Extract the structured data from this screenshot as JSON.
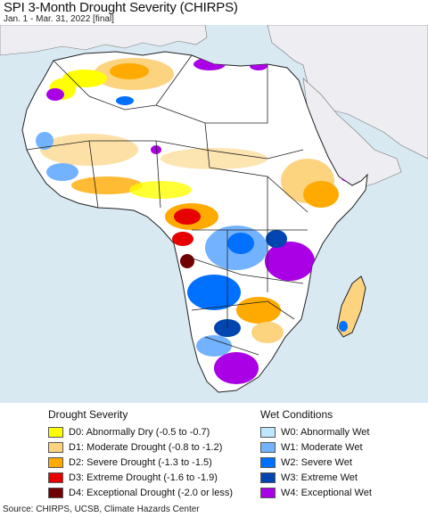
{
  "title": "SPI 3-Month Drought Severity (CHIRPS)",
  "subtitle": "Jan. 1 - Mar. 31, 2022 [final]",
  "colors": {
    "ocean": "#d8e9f2",
    "land_no_data_outside": "#eeeef2",
    "africa_base": "#ffffff",
    "border": "#222222"
  },
  "legend": {
    "drought": {
      "heading": "Drought Severity",
      "items": [
        {
          "label": "D0: Abnormally Dry (-0.5 to -0.7)",
          "color": "#ffff00"
        },
        {
          "label": "D1: Moderate Drought (-0.8 to -1.2)",
          "color": "#fcd37f"
        },
        {
          "label": "D2: Severe Drought (-1.3 to -1.5)",
          "color": "#ffaa00"
        },
        {
          "label": "D3: Extreme Drought (-1.6 to -1.9)",
          "color": "#e60000"
        },
        {
          "label": "D4: Exceptional Drought (-2.0 or less)",
          "color": "#730000"
        }
      ]
    },
    "wet": {
      "heading": "Wet Conditions",
      "items": [
        {
          "label": "W0: Abnormally Wet",
          "color": "#bee8ff"
        },
        {
          "label": "W1: Moderate Wet",
          "color": "#73b2ff"
        },
        {
          "label": "W2: Severe Wet",
          "color": "#0070ff"
        },
        {
          "label": "W3: Extreme Wet",
          "color": "#0045b0"
        },
        {
          "label": "W4: Exceptional Wet",
          "color": "#aa00e6"
        }
      ]
    }
  },
  "source": "Source: CHIRPS, UCSB, Climate Hazards Center"
}
